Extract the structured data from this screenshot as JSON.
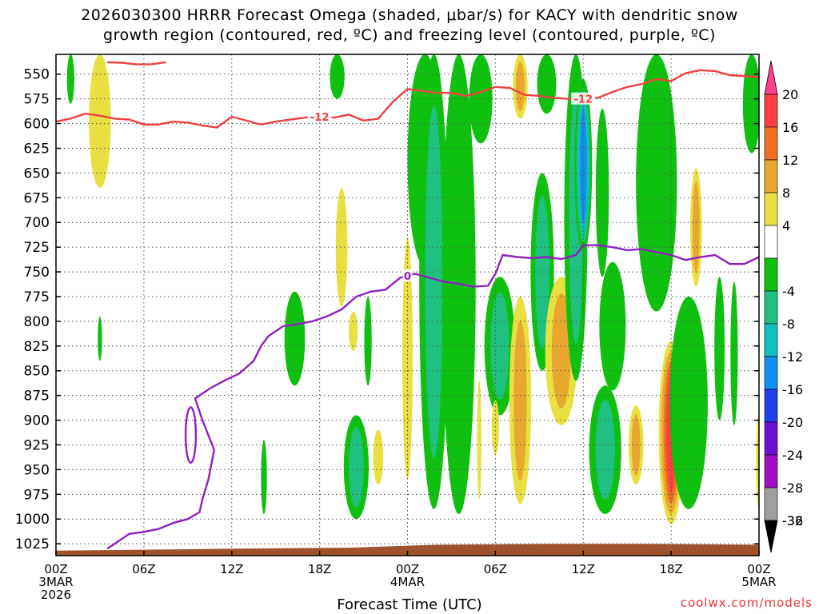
{
  "chart_data": {
    "type": "heatmap",
    "title_line1": "2026030300 HRRR Forecast Omega (shaded, μbar/s) for KACY with dendritic snow",
    "title_line2": "growth region (contoured, red, ºC) and freezing level (contoured, purple, ºC)",
    "xlabel": "Forecast Time (UTC)",
    "credit": "coolwx.com/models",
    "x_range_hours": [
      0,
      48
    ],
    "y_range_hpa": [
      1037,
      530
    ],
    "y_ticks": [
      550,
      575,
      600,
      625,
      650,
      675,
      700,
      725,
      750,
      775,
      800,
      825,
      850,
      875,
      900,
      925,
      950,
      975,
      1000,
      1025
    ],
    "x_ticks": [
      {
        "hour": 0,
        "label": "00Z",
        "sub1": "3MAR",
        "sub2": "2026"
      },
      {
        "hour": 6,
        "label": "06Z"
      },
      {
        "hour": 12,
        "label": "12Z"
      },
      {
        "hour": 18,
        "label": "18Z"
      },
      {
        "hour": 24,
        "label": "00Z",
        "sub1": "4MAR"
      },
      {
        "hour": 30,
        "label": "06Z"
      },
      {
        "hour": 36,
        "label": "12Z"
      },
      {
        "hour": 42,
        "label": "18Z"
      },
      {
        "hour": 48,
        "label": "00Z",
        "sub1": "5MAR"
      }
    ],
    "colorbar": {
      "top_value": "20",
      "bottom_value": "-36",
      "labels": [
        "20",
        "16",
        "12",
        "8",
        "4",
        "-4",
        "-8",
        "-12",
        "-16",
        "-20",
        "-24",
        "-28",
        "-32",
        "-36"
      ],
      "bins": [
        {
          "range": [
            16,
            20
          ],
          "color": "#ff4040"
        },
        {
          "range": [
            12,
            16
          ],
          "color": "#f07020"
        },
        {
          "range": [
            8,
            12
          ],
          "color": "#e8a830"
        },
        {
          "range": [
            4,
            8
          ],
          "color": "#e8e040"
        },
        {
          "range": [
            -4,
            4
          ],
          "color": "#ffffff"
        },
        {
          "range": [
            -8,
            -4
          ],
          "color": "#10c010"
        },
        {
          "range": [
            -12,
            -8
          ],
          "color": "#20c080"
        },
        {
          "range": [
            -16,
            -12
          ],
          "color": "#10c0c0"
        },
        {
          "range": [
            -20,
            -16
          ],
          "color": "#1090f0"
        },
        {
          "range": [
            -24,
            -20
          ],
          "color": "#2040f0"
        },
        {
          "range": [
            -28,
            -24
          ],
          "color": "#7010d0"
        },
        {
          "range": [
            -32,
            -28
          ],
          "color": "#a010c0"
        },
        {
          "range": [
            -36,
            -32
          ],
          "color": "#a0a0a0"
        }
      ],
      "above_color": "#ff4090",
      "below_color": "#000000"
    },
    "omega_features": [
      {
        "kind": "neg",
        "hour": 1.0,
        "p_top": 530,
        "p_bot": 580,
        "width": 0.5,
        "levels": 1
      },
      {
        "kind": "pos",
        "hour": 3.0,
        "p_top": 530,
        "p_bot": 665,
        "width": 1.5,
        "levels": 1
      },
      {
        "kind": "neg",
        "hour": 3.0,
        "p_top": 795,
        "p_bot": 840,
        "width": 0.3,
        "levels": 1
      },
      {
        "kind": "neg",
        "hour": 14.2,
        "p_top": 920,
        "p_bot": 995,
        "width": 0.4,
        "levels": 1
      },
      {
        "kind": "neg",
        "hour": 16.3,
        "p_top": 770,
        "p_bot": 865,
        "width": 1.4,
        "levels": 1
      },
      {
        "kind": "neg",
        "hour": 19.2,
        "p_top": 530,
        "p_bot": 575,
        "width": 1.0,
        "levels": 1
      },
      {
        "kind": "pos",
        "hour": 19.5,
        "p_top": 665,
        "p_bot": 785,
        "width": 0.8,
        "levels": 1
      },
      {
        "kind": "pos",
        "hour": 20.3,
        "p_top": 790,
        "p_bot": 830,
        "width": 0.6,
        "levels": 1
      },
      {
        "kind": "neg",
        "hour": 20.5,
        "p_top": 895,
        "p_bot": 1000,
        "width": 1.7,
        "levels": 2
      },
      {
        "kind": "neg",
        "hour": 21.3,
        "p_top": 775,
        "p_bot": 865,
        "width": 0.5,
        "levels": 1
      },
      {
        "kind": "pos",
        "hour": 22.0,
        "p_top": 910,
        "p_bot": 965,
        "width": 0.7,
        "levels": 1
      },
      {
        "kind": "pos",
        "hour": 24.0,
        "p_top": 715,
        "p_bot": 960,
        "width": 0.7,
        "levels": 1
      },
      {
        "kind": "neg",
        "hour": 25.2,
        "p_top": 530,
        "p_bot": 745,
        "width": 2.4,
        "levels": 1
      },
      {
        "kind": "neg",
        "hour": 25.8,
        "p_top": 530,
        "p_bot": 990,
        "width": 2.0,
        "levels": 2
      },
      {
        "kind": "neg",
        "hour": 27.5,
        "p_top": 530,
        "p_bot": 995,
        "width": 2.3,
        "levels": 1
      },
      {
        "kind": "neg",
        "hour": 29.0,
        "p_top": 530,
        "p_bot": 620,
        "width": 1.6,
        "levels": 1
      },
      {
        "kind": "pos",
        "hour": 28.9,
        "p_top": 860,
        "p_bot": 980,
        "width": 0.3,
        "levels": 1
      },
      {
        "kind": "neg",
        "hour": 30.3,
        "p_top": 755,
        "p_bot": 895,
        "width": 2.1,
        "levels": 2
      },
      {
        "kind": "pos",
        "hour": 30.0,
        "p_top": 880,
        "p_bot": 935,
        "width": 0.5,
        "levels": 1
      },
      {
        "kind": "pos",
        "hour": 31.7,
        "p_top": 530,
        "p_bot": 595,
        "width": 1.0,
        "levels": 2
      },
      {
        "kind": "pos",
        "hour": 31.7,
        "p_top": 775,
        "p_bot": 985,
        "width": 1.5,
        "levels": 2
      },
      {
        "kind": "neg",
        "hour": 33.2,
        "p_top": 650,
        "p_bot": 850,
        "width": 1.6,
        "levels": 2
      },
      {
        "kind": "neg",
        "hour": 33.5,
        "p_top": 530,
        "p_bot": 590,
        "width": 1.3,
        "levels": 1
      },
      {
        "kind": "pos",
        "hour": 34.5,
        "p_top": 755,
        "p_bot": 905,
        "width": 2.2,
        "levels": 2
      },
      {
        "kind": "neg",
        "hour": 35.5,
        "p_top": 530,
        "p_bot": 860,
        "width": 1.6,
        "levels": 2
      },
      {
        "kind": "neg",
        "hour": 36.0,
        "p_top": 555,
        "p_bot": 730,
        "width": 1.2,
        "levels": 4
      },
      {
        "kind": "neg",
        "hour": 37.3,
        "p_top": 585,
        "p_bot": 755,
        "width": 0.9,
        "levels": 1
      },
      {
        "kind": "neg",
        "hour": 38.0,
        "p_top": 740,
        "p_bot": 870,
        "width": 1.8,
        "levels": 1
      },
      {
        "kind": "neg",
        "hour": 37.5,
        "p_top": 865,
        "p_bot": 995,
        "width": 2.2,
        "levels": 2
      },
      {
        "kind": "pos",
        "hour": 39.6,
        "p_top": 885,
        "p_bot": 965,
        "width": 1.0,
        "levels": 2
      },
      {
        "kind": "neg",
        "hour": 41.0,
        "p_top": 530,
        "p_bot": 790,
        "width": 2.8,
        "levels": 1
      },
      {
        "kind": "pos",
        "hour": 42.0,
        "p_top": 820,
        "p_bot": 1005,
        "width": 1.7,
        "levels": 4
      },
      {
        "kind": "pos",
        "hour": 43.7,
        "p_top": 645,
        "p_bot": 765,
        "width": 0.8,
        "levels": 2
      },
      {
        "kind": "neg",
        "hour": 43.2,
        "p_top": 775,
        "p_bot": 990,
        "width": 2.6,
        "levels": 1
      },
      {
        "kind": "neg",
        "hour": 45.3,
        "p_top": 755,
        "p_bot": 900,
        "width": 0.7,
        "levels": 1
      },
      {
        "kind": "neg",
        "hour": 46.3,
        "p_top": 760,
        "p_bot": 905,
        "width": 0.5,
        "levels": 1
      },
      {
        "kind": "neg",
        "hour": 47.5,
        "p_top": 530,
        "p_bot": 630,
        "width": 1.2,
        "levels": 1
      },
      {
        "kind": "pos",
        "hour": 48.0,
        "p_top": 895,
        "p_bot": 990,
        "width": 0.4,
        "levels": 1
      }
    ],
    "dgz_line": {
      "label": "-12",
      "label_hours": [
        18.0,
        36.0
      ],
      "color": "#f04040",
      "points": [
        [
          0,
          598
        ],
        [
          1,
          595
        ],
        [
          2,
          590
        ],
        [
          3,
          592
        ],
        [
          4,
          595
        ],
        [
          5,
          596
        ],
        [
          6,
          601
        ],
        [
          7,
          601
        ],
        [
          8,
          598
        ],
        [
          9,
          599
        ],
        [
          10,
          602
        ],
        [
          11,
          604
        ],
        [
          12,
          593
        ],
        [
          13,
          597
        ],
        [
          14,
          601
        ],
        [
          15,
          598
        ],
        [
          16,
          596
        ],
        [
          17,
          594
        ],
        [
          18,
          593
        ],
        [
          19,
          594
        ],
        [
          20,
          591
        ],
        [
          21,
          597
        ],
        [
          22,
          595
        ],
        [
          23,
          578
        ],
        [
          24,
          565
        ],
        [
          25,
          567
        ],
        [
          26,
          569
        ],
        [
          27,
          569
        ],
        [
          28,
          572
        ],
        [
          29,
          568
        ],
        [
          30,
          563
        ],
        [
          31,
          564
        ],
        [
          32,
          571
        ],
        [
          33,
          572
        ],
        [
          34,
          574
        ],
        [
          35,
          575
        ],
        [
          36,
          575
        ],
        [
          37,
          574
        ],
        [
          38,
          568
        ],
        [
          39,
          563
        ],
        [
          40,
          560
        ],
        [
          41,
          555
        ],
        [
          42,
          557
        ],
        [
          43,
          549
        ],
        [
          44,
          546
        ],
        [
          45,
          547
        ],
        [
          46,
          551
        ],
        [
          47,
          552
        ],
        [
          48,
          553
        ]
      ]
    },
    "dgz_line_top": {
      "points": [
        [
          3.5,
          538
        ],
        [
          4.5,
          538.5
        ],
        [
          5.5,
          540
        ],
        [
          6.5,
          540
        ],
        [
          7.5,
          538
        ]
      ]
    },
    "freezing_line": {
      "label": "0",
      "label_hour": 24.0,
      "color": "#9020c0",
      "points": [
        [
          3.5,
          1030
        ],
        [
          4.0,
          1025
        ],
        [
          5.0,
          1015
        ],
        [
          6.0,
          1013
        ],
        [
          7.0,
          1010
        ],
        [
          8.0,
          1004
        ],
        [
          9.0,
          1000
        ],
        [
          9.8,
          993
        ],
        [
          10.0,
          980
        ],
        [
          10.4,
          960
        ],
        [
          10.8,
          930
        ],
        [
          10.0,
          900
        ],
        [
          9.5,
          878
        ],
        [
          10.5,
          868
        ],
        [
          11.5,
          860
        ],
        [
          12.5,
          853
        ],
        [
          13.5,
          840
        ],
        [
          14.0,
          825
        ],
        [
          14.5,
          815
        ],
        [
          15.5,
          805
        ],
        [
          16.5,
          803
        ],
        [
          17.5,
          800
        ],
        [
          18.5,
          795
        ],
        [
          19.5,
          788
        ],
        [
          20.5,
          775
        ],
        [
          21.5,
          770
        ],
        [
          22.5,
          768
        ],
        [
          23.5,
          756
        ],
        [
          24.5,
          752
        ],
        [
          25.5,
          756
        ],
        [
          26.5,
          760
        ],
        [
          27.5,
          762
        ],
        [
          28.5,
          765
        ],
        [
          29.5,
          764
        ],
        [
          30.0,
          752
        ],
        [
          30.5,
          733
        ],
        [
          31.5,
          735
        ],
        [
          32.5,
          736
        ],
        [
          33.5,
          735
        ],
        [
          34.5,
          737
        ],
        [
          35.5,
          733
        ],
        [
          36.0,
          723
        ],
        [
          37.0,
          723
        ],
        [
          38.0,
          725
        ],
        [
          39.0,
          728
        ],
        [
          40.0,
          727
        ],
        [
          41.0,
          730
        ],
        [
          42.0,
          733
        ],
        [
          43.0,
          738
        ],
        [
          44.0,
          735
        ],
        [
          45.0,
          733
        ],
        [
          46.0,
          742
        ],
        [
          47.0,
          742
        ],
        [
          48.0,
          735
        ]
      ]
    },
    "freezing_loop": {
      "center_hour": 9.2,
      "center_hpa": 915,
      "radius_hours": 0.35,
      "radius_hpa": 28
    },
    "terrain": {
      "color": "#a0522d",
      "surface_points": [
        [
          0,
          1032
        ],
        [
          6,
          1031
        ],
        [
          12,
          1030
        ],
        [
          20,
          1029
        ],
        [
          26,
          1026
        ],
        [
          34,
          1025
        ],
        [
          40,
          1025
        ],
        [
          48,
          1026
        ]
      ]
    }
  }
}
